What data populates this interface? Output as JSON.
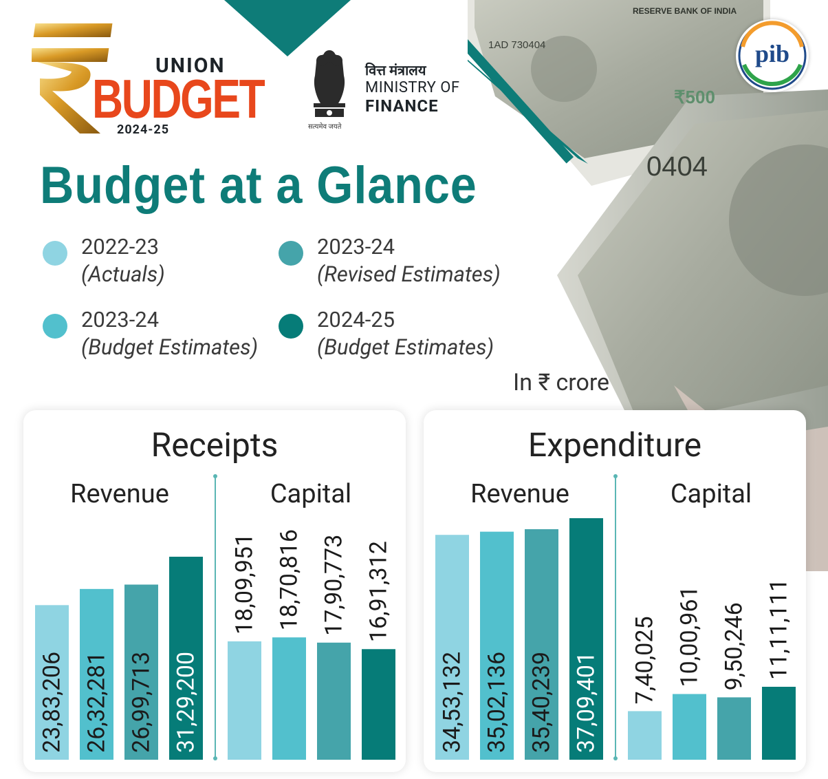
{
  "header": {
    "logo_union": "UNION",
    "logo_budget": "BUDGET",
    "logo_year": "2024-25",
    "ministry_hindi": "वित्त मंत्रालय",
    "ministry_line1": "MINISTRY OF",
    "ministry_line2": "FINANCE",
    "emblem_motto": "सत्यमेव जयते",
    "pib_logo_text": "pib"
  },
  "title": "Budget at a Glance",
  "legend": [
    {
      "year": "2022-23",
      "label": "(Actuals)",
      "color": "#8fd4e2"
    },
    {
      "year": "2023-24",
      "label": "(Revised Estimates)",
      "color": "#45a4aa"
    },
    {
      "year": "2023-24",
      "label": "(Budget Estimates)",
      "color": "#52c0cd"
    },
    {
      "year": "2024-25",
      "label": "(Budget Estimates)",
      "color": "#067c78"
    }
  ],
  "unit_note": "In ₹ crore",
  "panels": {
    "receipts": {
      "title": "Receipts",
      "left_label": "Revenue",
      "right_label": "Capital"
    },
    "expenditure": {
      "title": "Expenditure",
      "left_label": "Revenue",
      "right_label": "Capital"
    }
  },
  "chart_data": [
    {
      "type": "bar",
      "title": "Receipts",
      "categories": [
        "Revenue",
        "Capital"
      ],
      "series": [
        {
          "name": "2022-23 (Actuals)",
          "values": [
            2383206,
            1809951
          ],
          "labels": [
            "23,83,206",
            "18,09,951"
          ],
          "color": "#8fd4e2"
        },
        {
          "name": "2023-24 (Budget Estimates)",
          "values": [
            2632281,
            1870816
          ],
          "labels": [
            "26,32,281",
            "18,70,816"
          ],
          "color": "#52c0cd"
        },
        {
          "name": "2023-24 (Revised Estimates)",
          "values": [
            2699713,
            1790773
          ],
          "labels": [
            "26,99,713",
            "17,90,773"
          ],
          "color": "#45a4aa"
        },
        {
          "name": "2024-25 (Budget Estimates)",
          "values": [
            3129200,
            1691312
          ],
          "labels": [
            "31,29,200",
            "16,91,312"
          ],
          "color": "#067c78"
        }
      ],
      "ylabel": "In ₹ crore"
    },
    {
      "type": "bar",
      "title": "Expenditure",
      "categories": [
        "Revenue",
        "Capital"
      ],
      "series": [
        {
          "name": "2022-23 (Actuals)",
          "values": [
            3453132,
            740025
          ],
          "labels": [
            "34,53,132",
            "7,40,025"
          ],
          "color": "#8fd4e2"
        },
        {
          "name": "2023-24 (Budget Estimates)",
          "values": [
            3502136,
            1000961
          ],
          "labels": [
            "35,02,136",
            "10,00,961"
          ],
          "color": "#52c0cd"
        },
        {
          "name": "2023-24 (Revised Estimates)",
          "values": [
            3540239,
            950246
          ],
          "labels": [
            "35,40,239",
            "9,50,246"
          ],
          "color": "#45a4aa"
        },
        {
          "name": "2024-25 (Budget Estimates)",
          "values": [
            3709401,
            1111111
          ],
          "labels": [
            "37,09,401",
            "11,11,111"
          ],
          "color": "#067c78"
        }
      ],
      "ylabel": "In ₹ crore"
    }
  ]
}
